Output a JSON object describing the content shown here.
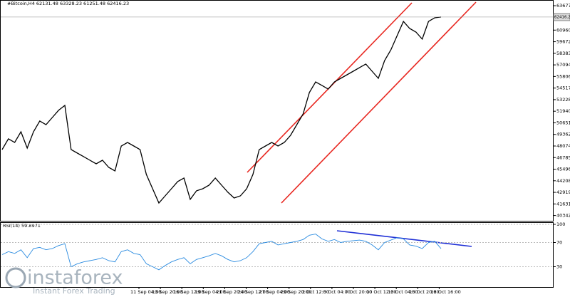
{
  "chart_data": [
    {
      "type": "line",
      "title": "#Bitcoin,H4  62131.48 63328.23 61251.48 62416.23",
      "values": [
        47680,
        48870,
        48470,
        49660,
        47840,
        49660,
        50850,
        50450,
        51240,
        52040,
        52590,
        47680,
        47280,
        46890,
        46490,
        46090,
        46490,
        45700,
        45300,
        48070,
        48470,
        48070,
        47680,
        44910,
        43320,
        41740,
        42530,
        43320,
        44120,
        44510,
        42140,
        43090,
        43320,
        43720,
        44510,
        43720,
        42930,
        42290,
        42530,
        43320,
        44910,
        47680,
        48070,
        48470,
        48070,
        48470,
        49260,
        50450,
        51640,
        54020,
        55200,
        54810,
        54410,
        55200,
        55600,
        55990,
        56390,
        56790,
        57190,
        56390,
        55600,
        57580,
        58770,
        60350,
        61930,
        61140,
        60750,
        59960,
        61930,
        62330,
        62416.23
      ],
      "color": "#000000",
      "last_value": 62416.23,
      "x_labels": [
        "11 Sep 04:00",
        "13 Sep 20:00",
        "16 Sep 12:00",
        "19 Sep 04:00",
        "21 Sep 20:00",
        "24 Sep 12:00",
        "27 Sep 04:00",
        "29 Sep 20:00",
        "2 Oct 12:00",
        "5 Oct 04:00",
        "7 Oct 20:00",
        "10 Oct 12:00",
        "13 Oct 04:00",
        "15 Oct 20:00",
        "18 Oct 16:00"
      ],
      "ylim": [
        39914.8,
        63677
      ],
      "yticks": [
        40342.35,
        {
          "value": 41631,
          "label": "41631.00"
        },
        42919.65,
        {
          "value": 44208.3,
          "label": "44208.30"
        },
        45496.95,
        {
          "value": 46785.6,
          "label": "46785.60"
        },
        48074.25,
        {
          "value": 49362.9,
          "label": "49362.90"
        },
        50651.55,
        {
          "value": 51940.2,
          "label": "51940.20"
        },
        53228.85,
        {
          "value": 54517.5,
          "label": "54517.50"
        },
        55806.15,
        {
          "value": 57094.8,
          "label": "57094.80"
        },
        58383.45,
        {
          "value": 59672.1,
          "label": "59672.10"
        },
        60960.75,
        {
          "value": 63677,
          "label": "63677.00"
        }
      ]
    },
    {
      "type": "line",
      "title": "RSI(14) 59.8971",
      "values": [
        50,
        55,
        52,
        58,
        45,
        60,
        62,
        58,
        60,
        65,
        68,
        30,
        35,
        38,
        40,
        42,
        45,
        40,
        38,
        55,
        58,
        52,
        50,
        35,
        30,
        25,
        32,
        38,
        42,
        45,
        35,
        42,
        45,
        48,
        52,
        48,
        42,
        38,
        40,
        45,
        55,
        68,
        70,
        72,
        66,
        68,
        70,
        72,
        75,
        82,
        84,
        76,
        72,
        75,
        70,
        72,
        73,
        74,
        72,
        66,
        58,
        70,
        74,
        78,
        76,
        66,
        64,
        60,
        70,
        72,
        59.8971
      ],
      "color": "#2a8be0",
      "ylim": [
        0,
        100
      ],
      "yticks": [
        30,
        70,
        100
      ]
    }
  ],
  "watermark": {
    "brand": "instaforex",
    "tagline": "Instant Forex Trading"
  }
}
